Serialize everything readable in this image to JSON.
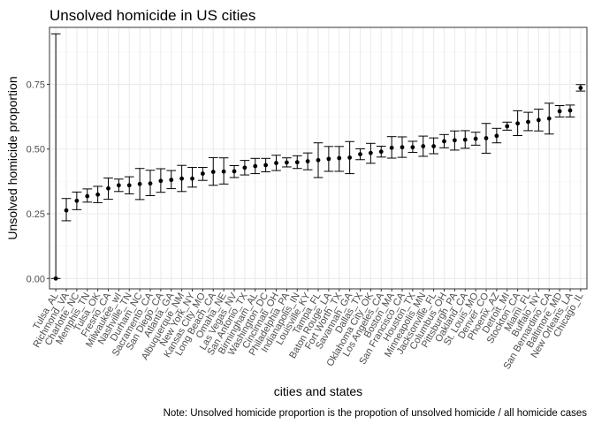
{
  "chart_data": {
    "type": "scatter",
    "title": "Unsolved homicide in US cities",
    "xlabel": "cities and states",
    "ylabel": "Unsolved homicide proportion",
    "caption": "Note: Unsolved homicide proportion is the propotion of unsolved homicide / all homicide cases",
    "ylim": [
      -0.04,
      0.97
    ],
    "yticks": [
      0.0,
      0.25,
      0.5,
      0.75
    ],
    "ytick_labels": [
      "0.00",
      "0.25",
      "0.50",
      "0.75"
    ],
    "grid": true,
    "error_bars": true,
    "categories": [
      "Tulsa_AL",
      "Richmond_VA",
      "Charlotte_NC",
      "Memphis_TN",
      "Tulsa_OK",
      "Fresno_CA",
      "Milwaukee_wI",
      "Nashville_TN",
      "Durham_NC",
      "Sacramento_CA",
      "San Diego_CA",
      "Atlanta_GA",
      "Albuquerque_NM",
      "New York_NY",
      "Kansas City_MO",
      "Long Beach_CA",
      "Omaha_NE",
      "Las Vegas_NV",
      "San Antonio_TX",
      "Birmingham_AL",
      "Washington_DC",
      "Cincinnati_OH",
      "Philadelphia_PA",
      "Indianapolis_IN",
      "Louisville_KY",
      "Tampa_FL",
      "Baton Rouge_LA",
      "Fort Worth_TX",
      "Savannah_GA",
      "Dallas_TX",
      "Oklahoma City_OK",
      "Los Angeles_CA",
      "Boston_MA",
      "San Francisco_CA",
      "Houston_TX",
      "Minneapolis_MN",
      "Jacksonville_FL",
      "Columbus_OH",
      "Pittsburgh_PA",
      "Oakland_CA",
      "St. Louis_MO",
      "Denver_CO",
      "Phoenix_AZ",
      "Detroit_MI",
      "Stockton_CA",
      "Miami_FL",
      "Buffalo_NY",
      "San Bernardino_CA",
      "Baltimore_MD",
      "New Orleans_LA",
      "Chicago_IL"
    ],
    "series": [
      {
        "values": [
          0.0,
          0.263,
          0.3,
          0.318,
          0.324,
          0.348,
          0.36,
          0.36,
          0.365,
          0.367,
          0.377,
          0.381,
          0.386,
          0.386,
          0.405,
          0.412,
          0.413,
          0.414,
          0.428,
          0.434,
          0.438,
          0.446,
          0.448,
          0.449,
          0.453,
          0.457,
          0.462,
          0.465,
          0.467,
          0.48,
          0.485,
          0.49,
          0.505,
          0.507,
          0.507,
          0.511,
          0.511,
          0.53,
          0.534,
          0.536,
          0.54,
          0.542,
          0.551,
          0.588,
          0.599,
          0.605,
          0.612,
          0.618,
          0.646,
          0.649,
          0.736
        ],
        "lower": [
          0.0,
          0.223,
          0.266,
          0.295,
          0.293,
          0.306,
          0.336,
          0.327,
          0.305,
          0.32,
          0.333,
          0.347,
          0.336,
          0.353,
          0.379,
          0.36,
          0.365,
          0.39,
          0.4,
          0.405,
          0.412,
          0.417,
          0.431,
          0.425,
          0.42,
          0.39,
          0.414,
          0.414,
          0.405,
          0.459,
          0.445,
          0.469,
          0.465,
          0.468,
          0.487,
          0.472,
          0.482,
          0.505,
          0.496,
          0.503,
          0.515,
          0.484,
          0.524,
          0.573,
          0.552,
          0.571,
          0.57,
          0.558,
          0.624,
          0.624,
          0.724
        ],
        "upper": [
          0.945,
          0.309,
          0.334,
          0.346,
          0.356,
          0.388,
          0.384,
          0.393,
          0.425,
          0.418,
          0.424,
          0.417,
          0.437,
          0.429,
          0.429,
          0.467,
          0.466,
          0.436,
          0.456,
          0.464,
          0.464,
          0.476,
          0.466,
          0.474,
          0.485,
          0.524,
          0.51,
          0.51,
          0.529,
          0.501,
          0.522,
          0.511,
          0.548,
          0.547,
          0.53,
          0.55,
          0.543,
          0.556,
          0.57,
          0.571,
          0.565,
          0.599,
          0.58,
          0.604,
          0.648,
          0.642,
          0.654,
          0.677,
          0.668,
          0.67,
          0.749
        ]
      }
    ]
  },
  "colors": {
    "point": "#000000",
    "errorbar": "#000000",
    "grid_major": "#ebebeb",
    "grid_minor": "#f5f5f5",
    "panel_border": "#333333",
    "tick_text": "#4d4d4d"
  }
}
